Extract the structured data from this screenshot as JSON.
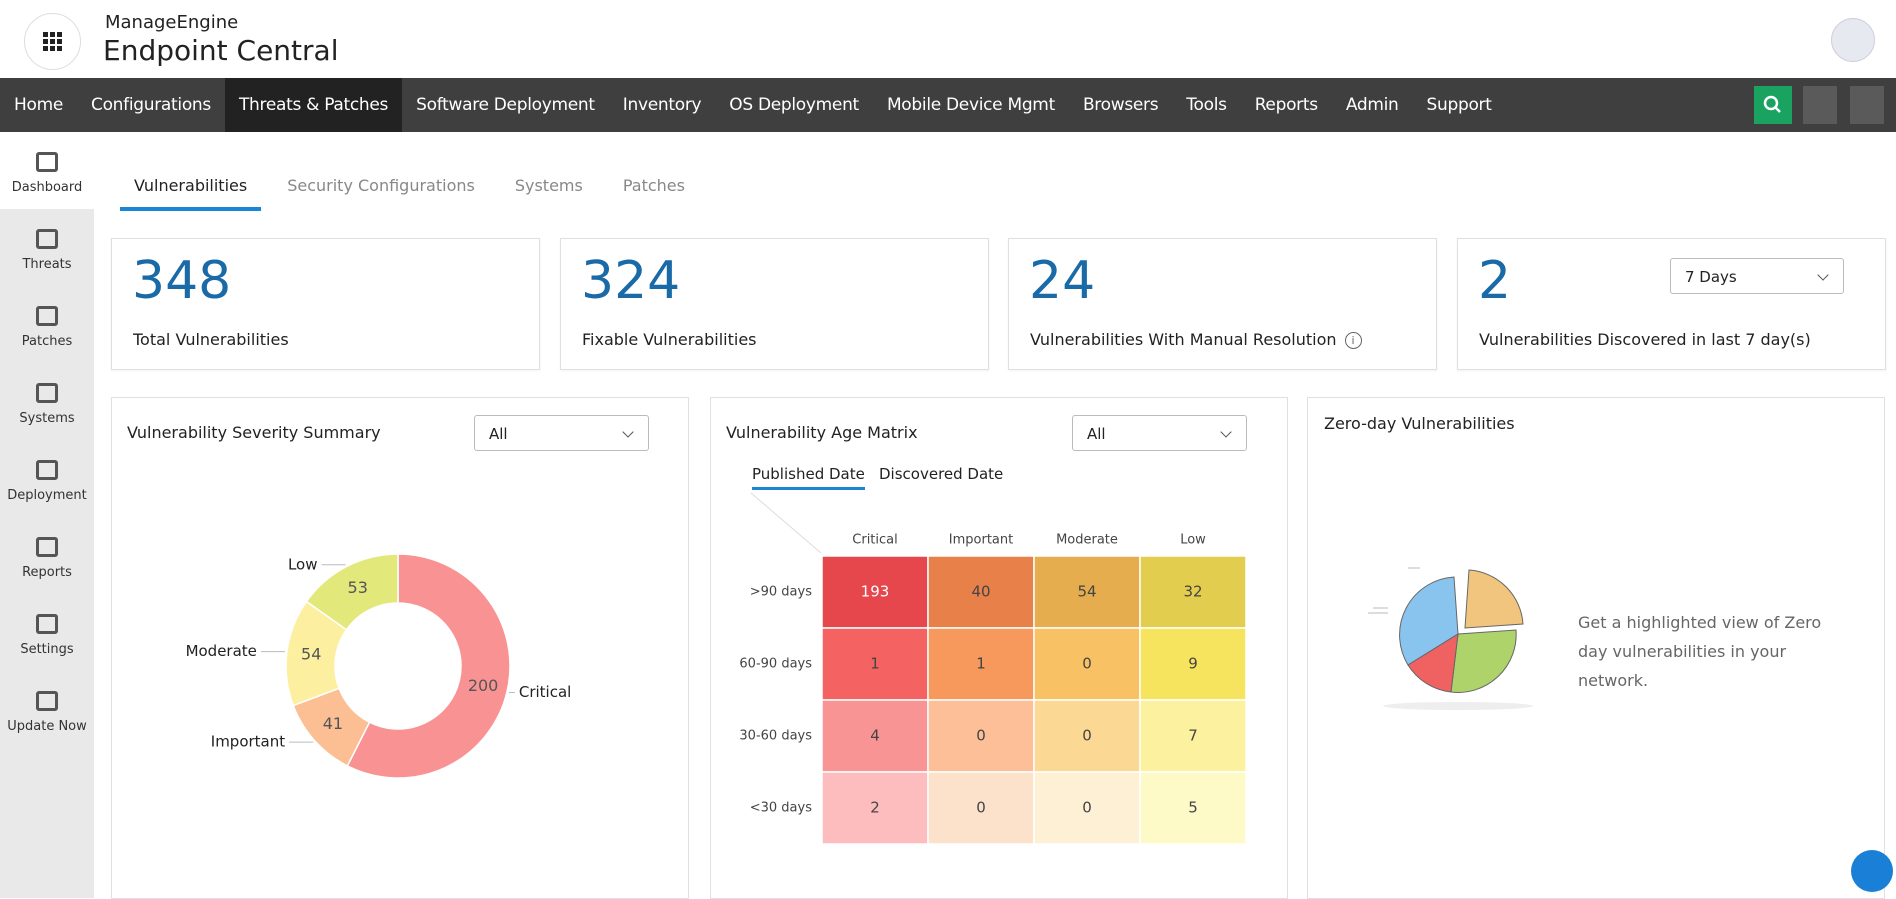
{
  "header": {
    "brand": "ManageEngine",
    "product": "Endpoint Central"
  },
  "nav": [
    "Home",
    "Configurations",
    "Threats & Patches",
    "Software Deployment",
    "Inventory",
    "OS Deployment",
    "Mobile Device Mgmt",
    "Browsers",
    "Tools",
    "Reports",
    "Admin",
    "Support"
  ],
  "sidebar": [
    "Dashboard",
    "Threats",
    "Patches",
    "Systems",
    "Deployment",
    "Reports",
    "Settings",
    "Update Now"
  ],
  "tabs": [
    "Vulnerabilities",
    "Security Configurations",
    "Systems",
    "Patches"
  ],
  "cards": [
    {
      "value": 348,
      "label": "Total Vulnerabilities"
    },
    {
      "value": 324,
      "label": "Fixable Vulnerabilities"
    },
    {
      "value": 24,
      "label": "Vulnerabilities With Manual Resolution"
    },
    {
      "value": 2,
      "label": "Vulnerabilities Discovered in last 7 day(s)"
    }
  ],
  "period_select": "7 Days",
  "severity_summary": {
    "title": "Vulnerability Severity Summary",
    "filter": "All",
    "chart_data": {
      "type": "donut",
      "categories": [
        "Critical",
        "Important",
        "Moderate",
        "Low"
      ],
      "values": [
        200,
        41,
        54,
        53
      ],
      "colors": [
        "#f99393",
        "#fbbf93",
        "#fcf0a0",
        "#e3e87a"
      ]
    }
  },
  "age_matrix": {
    "title": "Vulnerability Age Matrix",
    "filter": "All",
    "tabs": [
      "Published Date",
      "Discovered Date"
    ],
    "chart_data": {
      "type": "heatmap",
      "columns": [
        "Critical",
        "Important",
        "Moderate",
        "Low"
      ],
      "rows": [
        ">90 days",
        "60-90 days",
        "30-60 days",
        "<30 days"
      ],
      "values": [
        [
          193,
          40,
          54,
          32
        ],
        [
          1,
          1,
          0,
          9
        ],
        [
          4,
          0,
          0,
          7
        ],
        [
          2,
          0,
          0,
          5
        ]
      ],
      "colors": [
        [
          "#e5474d",
          "#e8804a",
          "#e6ad4e",
          "#e3cd4f"
        ],
        [
          "#f46262",
          "#f7985c",
          "#f8c164",
          "#f6e45e"
        ],
        [
          "#f99494",
          "#fcbf97",
          "#fbd995",
          "#fbf19e"
        ],
        [
          "#fdbdbe",
          "#fde2cb",
          "#fef0d5",
          "#fefac8"
        ]
      ]
    }
  },
  "zero_day": {
    "title": "Zero-day Vulnerabilities",
    "description": "Get a highlighted view of Zero day vulnerabilities in your network."
  }
}
